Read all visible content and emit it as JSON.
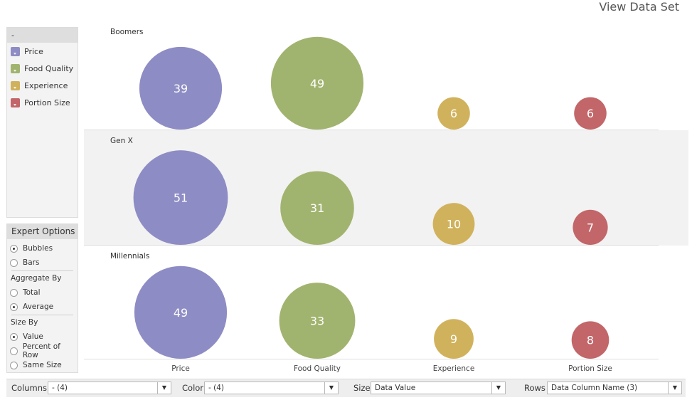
{
  "header": {
    "view_data_set": "View Data Set"
  },
  "legend": {
    "title": "-",
    "items": [
      {
        "label": "Price",
        "color": "#8e8cc4"
      },
      {
        "label": "Food Quality",
        "color": "#a1b46f"
      },
      {
        "label": "Experience",
        "color": "#d1b25c"
      },
      {
        "label": "Portion Size",
        "color": "#c26669"
      }
    ]
  },
  "expert": {
    "title": "Expert Options",
    "chart_type": {
      "options": [
        "Bubbles",
        "Bars"
      ],
      "selected": "Bubbles"
    },
    "aggregate_by": {
      "title": "Aggregate By",
      "options": [
        "Total",
        "Average"
      ],
      "selected": "Average"
    },
    "size_by": {
      "title": "Size By",
      "options": [
        "Value",
        "Percent of Row",
        "Same Size"
      ],
      "selected": "Value"
    }
  },
  "controls": {
    "columns": {
      "label": "Columns",
      "value": "- (4)"
    },
    "color": {
      "label": "Color",
      "value": "- (4)"
    },
    "size": {
      "label": "Size",
      "value": "Data Value"
    },
    "rows": {
      "label": "Rows",
      "value": "Data Column Name (3)"
    }
  },
  "chart_data": {
    "type": "bubble",
    "categories": [
      "Price",
      "Food Quality",
      "Experience",
      "Portion Size"
    ],
    "rows": [
      "Boomers",
      "Gen X",
      "Millennials"
    ],
    "colors": [
      "#8e8cc4",
      "#a1b46f",
      "#d1b25c",
      "#c26669"
    ],
    "values": [
      [
        39,
        49,
        6,
        6
      ],
      [
        51,
        31,
        10,
        7
      ],
      [
        49,
        33,
        9,
        8
      ]
    ]
  }
}
